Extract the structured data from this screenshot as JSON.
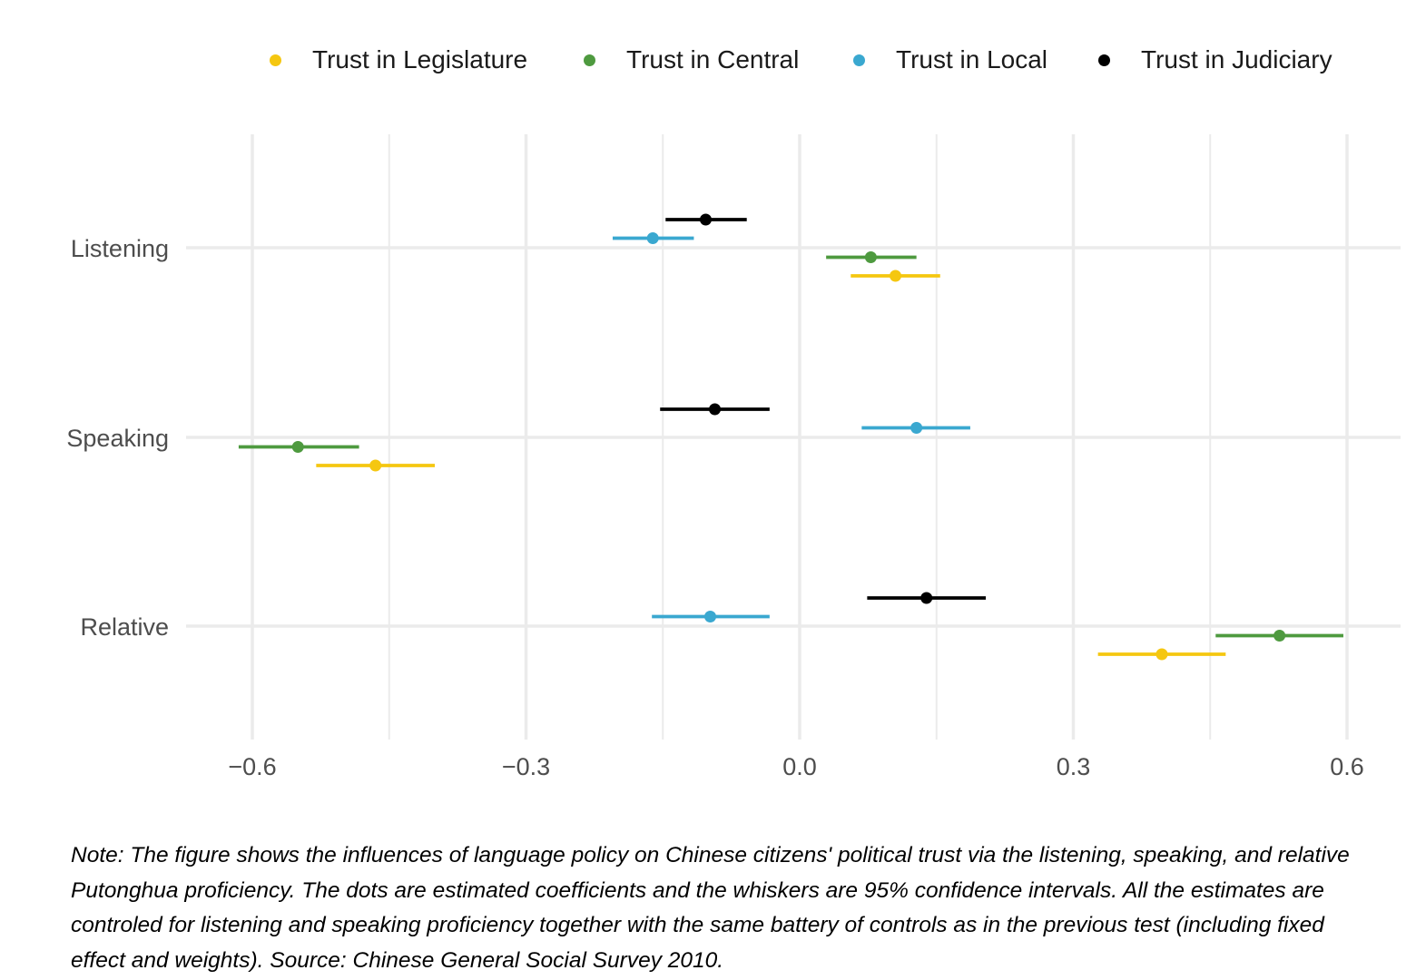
{
  "chart_data": {
    "type": "scatter",
    "subtype": "coefficient-plot-with-horizontal-whiskers",
    "title": "",
    "xlabel": "",
    "ylabel": "",
    "xlim": [
      -0.735,
      0.33
    ],
    "x_ticks": [
      -0.6,
      -0.3,
      0.0,
      0.3,
      0.6
    ],
    "x_tick_labels": [
      "−0.6",
      "−0.3",
      "0.0",
      "0.3",
      "0.6"
    ],
    "categories": [
      "Listening",
      "Speaking",
      "Relative"
    ],
    "grid": true,
    "legend_position": "top",
    "series": [
      {
        "name": "Trust in Legislature",
        "color": "#F5C710",
        "points": [
          {
            "category": "Listening",
            "estimate": 0.105,
            "low": 0.056,
            "high": 0.154
          },
          {
            "category": "Speaking",
            "estimate": -0.465,
            "low": -0.53,
            "high": -0.4
          },
          {
            "category": "Relative",
            "estimate": 0.397,
            "low": 0.327,
            "high": 0.467
          }
        ]
      },
      {
        "name": "Trust in Central",
        "color": "#4E9A3F",
        "points": [
          {
            "category": "Listening",
            "estimate": 0.078,
            "low": 0.029,
            "high": 0.128
          },
          {
            "category": "Speaking",
            "estimate": -0.55,
            "low": -0.615,
            "high": -0.483
          },
          {
            "category": "Relative",
            "estimate": 0.526,
            "low": 0.456,
            "high": 0.596
          }
        ]
      },
      {
        "name": "Trust in Local",
        "color": "#3AA8D0",
        "points": [
          {
            "category": "Listening",
            "estimate": -0.161,
            "low": -0.205,
            "high": -0.116
          },
          {
            "category": "Speaking",
            "estimate": 0.128,
            "low": 0.068,
            "high": 0.187
          },
          {
            "category": "Relative",
            "estimate": -0.098,
            "low": -0.162,
            "high": -0.033
          }
        ]
      },
      {
        "name": "Trust in Judiciary",
        "color": "#000000",
        "points": [
          {
            "category": "Listening",
            "estimate": -0.103,
            "low": -0.147,
            "high": -0.058
          },
          {
            "category": "Speaking",
            "estimate": -0.093,
            "low": -0.153,
            "high": -0.033
          },
          {
            "category": "Relative",
            "estimate": 0.139,
            "low": 0.074,
            "high": 0.204
          }
        ]
      }
    ]
  },
  "note": "Note: The figure shows the influences of language policy on Chinese citizens' political trust via the listening, speaking, and relative Putonghua proficiency. The dots are estimated coefficients and the whiskers are 95% confidence intervals. All the estimates are controled for listening and speaking proficiency together with the same battery of controls as in the previous test (including fixed effect and weights). Source: Chinese General Social Survey 2010."
}
